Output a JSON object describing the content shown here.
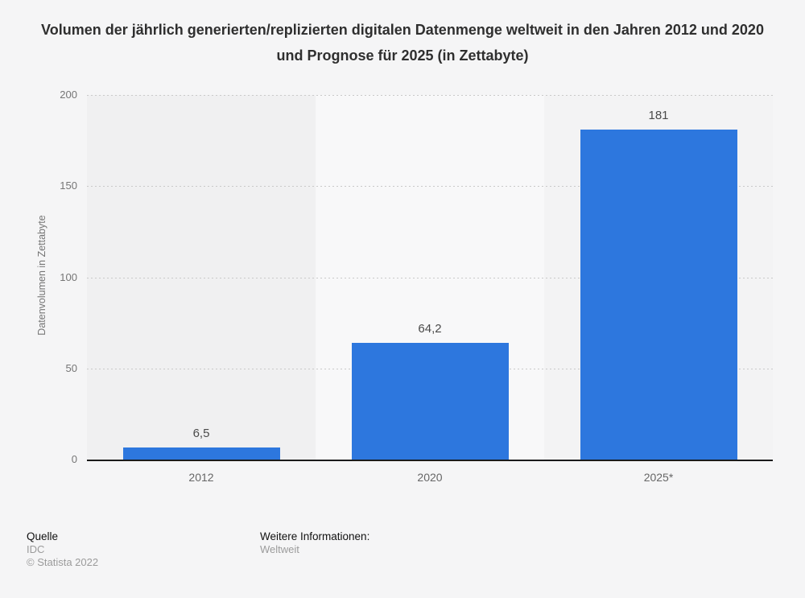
{
  "title": "Volumen der jährlich generierten/replizierten digitalen Datenmenge weltweit in den Jahren 2012 und 2020 und Prognose für 2025 (in Zettabyte)",
  "chart_data": {
    "type": "bar",
    "title": "Volumen der jährlich generierten/replizierten digitalen Datenmenge weltweit in den Jahren 2012 und 2020 und Prognose für 2025 (in Zettabyte)",
    "categories": [
      "2012",
      "2020",
      "2025*"
    ],
    "values": [
      6.5,
      64.2,
      181
    ],
    "value_labels": [
      "6,5",
      "64,2",
      "181"
    ],
    "xlabel": "",
    "ylabel": "Datenvolumen in Zettabyte",
    "ylim": [
      0,
      200
    ],
    "yticks": [
      0,
      50,
      100,
      150,
      200
    ],
    "grid": "horizontal-dotted",
    "legend": "none",
    "bar_color": "#2d77de",
    "band_colors": [
      "#f0f0f1",
      "#f8f8f9",
      "#f3f3f4"
    ],
    "gridline_color": "#c9c9c9",
    "axis_line_color": "#1b1b1b"
  },
  "footer": {
    "source_label": "Quelle",
    "source_value": "IDC",
    "copyright": "© Statista 2022",
    "info_label": "Weitere Informationen:",
    "info_value": "Weltweit"
  }
}
